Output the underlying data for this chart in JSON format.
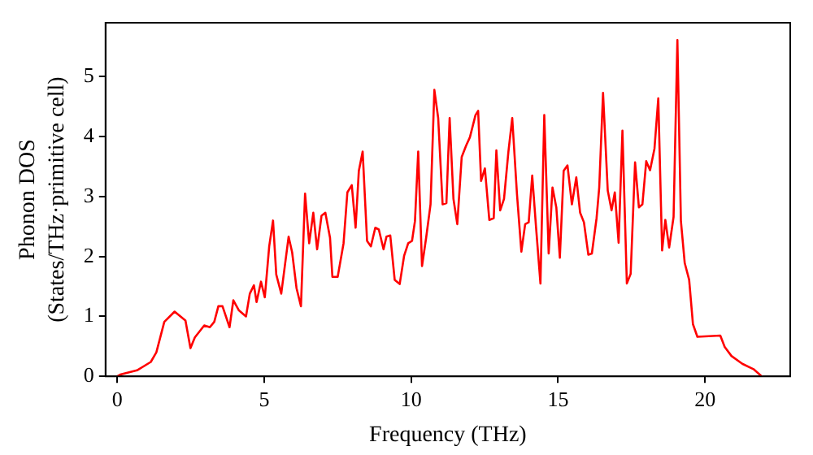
{
  "chart_data": {
    "type": "line",
    "xlabel": "Frequency (THz)",
    "ylabel": "Phonon DOS\n(States/THz·primitive cell)",
    "xlim": [
      -0.4,
      22.9
    ],
    "ylim": [
      0,
      5.9
    ],
    "xticks": [
      0,
      5,
      10,
      15,
      20
    ],
    "yticks": [
      0,
      1,
      2,
      3,
      4,
      5
    ],
    "grid": false,
    "legend": false,
    "marker": "none",
    "line_style": "solid",
    "series": [
      {
        "color": "#ff0000",
        "x": [
          0,
          0.1,
          0.67,
          1.14,
          1.33,
          1.6,
          1.95,
          2.32,
          2.49,
          2.64,
          2.96,
          3.15,
          3.3,
          3.44,
          3.58,
          3.82,
          3.95,
          4.14,
          4.38,
          4.51,
          4.65,
          4.74,
          4.89,
          5.02,
          5.17,
          5.3,
          5.41,
          5.58,
          5.83,
          5.95,
          6.1,
          6.25,
          6.39,
          6.53,
          6.67,
          6.8,
          6.95,
          7.08,
          7.24,
          7.32,
          7.5,
          7.7,
          7.83,
          7.98,
          8.11,
          8.22,
          8.35,
          8.5,
          8.63,
          8.78,
          8.9,
          9.06,
          9.16,
          9.29,
          9.44,
          9.61,
          9.76,
          9.9,
          10.03,
          10.13,
          10.24,
          10.37,
          10.51,
          10.66,
          10.79,
          10.92,
          11.07,
          11.2,
          11.31,
          11.44,
          11.57,
          11.72,
          11.87,
          12.0,
          12.19,
          12.28,
          12.38,
          12.51,
          12.66,
          12.81,
          12.9,
          13.03,
          13.16,
          13.31,
          13.44,
          13.6,
          13.75,
          13.88,
          14.0,
          14.12,
          14.25,
          14.4,
          14.53,
          14.68,
          14.81,
          14.94,
          15.06,
          15.19,
          15.32,
          15.47,
          15.62,
          15.75,
          15.88,
          16.03,
          16.15,
          16.31,
          16.4,
          16.53,
          16.69,
          16.82,
          16.93,
          17.06,
          17.19,
          17.34,
          17.47,
          17.62,
          17.75,
          17.87,
          18.0,
          18.13,
          18.28,
          18.41,
          18.54,
          18.65,
          18.78,
          18.93,
          19.06,
          19.18,
          19.31,
          19.46,
          19.59,
          19.74,
          20.52,
          20.67,
          20.9,
          21.27,
          21.65,
          21.93
        ],
        "values": [
          0,
          0.03,
          0.1,
          0.24,
          0.4,
          0.91,
          1.08,
          0.93,
          0.47,
          0.65,
          0.85,
          0.82,
          0.91,
          1.17,
          1.17,
          0.82,
          1.27,
          1.1,
          1.0,
          1.38,
          1.52,
          1.24,
          1.58,
          1.32,
          2.17,
          2.6,
          1.7,
          1.38,
          2.33,
          2.07,
          1.47,
          1.17,
          3.05,
          2.22,
          2.73,
          2.12,
          2.68,
          2.73,
          2.31,
          1.66,
          1.66,
          2.22,
          3.07,
          3.19,
          2.48,
          3.43,
          3.75,
          2.26,
          2.17,
          2.48,
          2.45,
          2.12,
          2.33,
          2.35,
          1.61,
          1.54,
          2.01,
          2.22,
          2.26,
          2.59,
          3.75,
          1.84,
          2.31,
          2.87,
          4.78,
          4.31,
          2.87,
          2.89,
          4.31,
          2.96,
          2.54,
          3.66,
          3.85,
          3.99,
          4.36,
          4.43,
          3.26,
          3.47,
          2.61,
          2.64,
          3.77,
          2.77,
          2.96,
          3.75,
          4.31,
          3.05,
          2.08,
          2.54,
          2.57,
          3.35,
          2.49,
          1.55,
          4.36,
          2.05,
          3.15,
          2.82,
          1.98,
          3.43,
          3.52,
          2.87,
          3.32,
          2.73,
          2.57,
          2.03,
          2.05,
          2.64,
          3.15,
          4.73,
          3.1,
          2.77,
          3.07,
          2.23,
          4.1,
          1.55,
          1.71,
          3.57,
          2.82,
          2.87,
          3.59,
          3.44,
          3.8,
          4.64,
          2.1,
          2.61,
          2.15,
          2.66,
          5.61,
          2.59,
          1.89,
          1.61,
          0.87,
          0.66,
          0.68,
          0.49,
          0.34,
          0.21,
          0.12,
          0
        ]
      }
    ]
  }
}
